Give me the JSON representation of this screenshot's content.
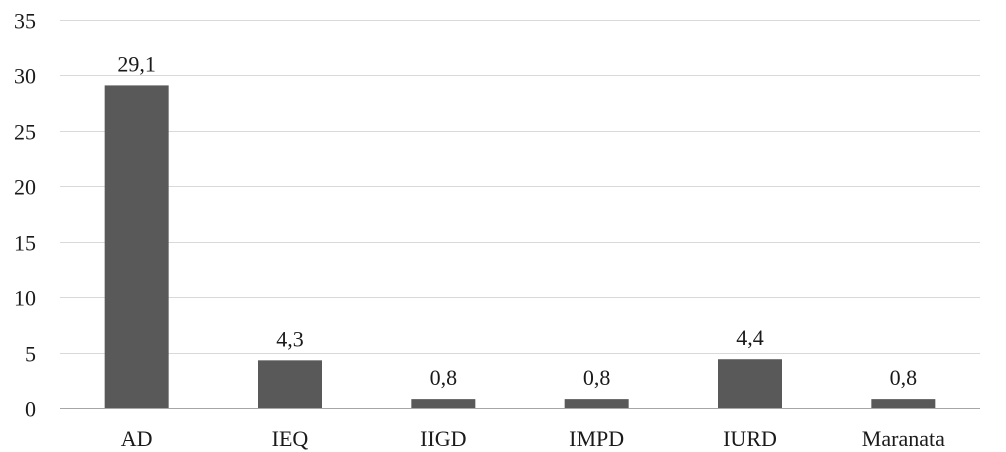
{
  "chart_data": {
    "type": "bar",
    "categories": [
      "AD",
      "IEQ",
      "IIGD",
      "IMPD",
      "IURD",
      "Maranata"
    ],
    "values": [
      29.1,
      4.3,
      0.8,
      0.8,
      4.4,
      0.8
    ],
    "data_labels": [
      "29,1",
      "4,3",
      "0,8",
      "0,8",
      "4,4",
      "0,8"
    ],
    "title": "",
    "xlabel": "",
    "ylabel": "",
    "ylim": [
      0,
      35
    ],
    "yticks": [
      0,
      5,
      10,
      15,
      20,
      25,
      30,
      35
    ],
    "grid": true,
    "legend": "none",
    "bar_color": "#595959"
  }
}
